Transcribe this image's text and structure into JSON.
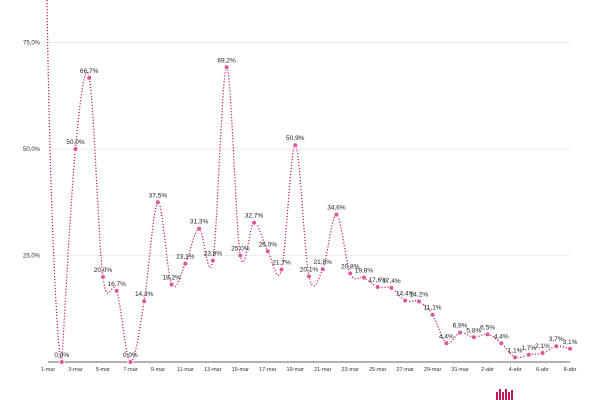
{
  "chart_data": {
    "type": "line",
    "ylim": [
      0,
      85
    ],
    "yticks": [
      25,
      50,
      75
    ],
    "ytick_labels": [
      "25,0%",
      "50,0%",
      "75,0%"
    ],
    "x": [
      "1-mar",
      "2-mar",
      "3-mar",
      "4-mar",
      "5-mar",
      "6-mar",
      "7-mar",
      "8-mar",
      "9-mar",
      "10-mar",
      "11-mar",
      "12-mar",
      "13-mar",
      "14-mar",
      "15-mar",
      "16-mar",
      "17-mar",
      "18-mar",
      "19-mar",
      "20-mar",
      "21-mar",
      "22-mar",
      "23-mar",
      "24-mar",
      "25-mar",
      "26-mar",
      "27-mar",
      "28-mar",
      "29-mar",
      "30-mar",
      "31-mar",
      "1-abr",
      "2-abr",
      "3-abr",
      "4-abr",
      "5-abr",
      "6-abr",
      "7-abr",
      "8-abr"
    ],
    "xtick_labels": [
      "1-mar",
      "3-mar",
      "5-mar",
      "7-mar",
      "9-mar",
      "11-mar",
      "13-mar",
      "15-mar",
      "17-mar",
      "19-mar",
      "21-mar",
      "23-mar",
      "25-mar",
      "27-mar",
      "29-mar",
      "31-mar",
      "2-abr",
      "4-abr",
      "6-abr",
      "8-abr"
    ],
    "series": [
      {
        "values": [
          null,
          0.0,
          50.0,
          66.7,
          20.0,
          16.7,
          0.0,
          14.3,
          37.5,
          18.2,
          23.1,
          31.3,
          23.8,
          69.2,
          25.0,
          32.7,
          26.0,
          21.7,
          50.9,
          20.1,
          21.8,
          34.6,
          20.8,
          19.8,
          17.6,
          17.4,
          14.4,
          14.2,
          11.1,
          4.4,
          6.9,
          5.8,
          6.5,
          4.4,
          1.1,
          1.7,
          2.1,
          3.7,
          3.1
        ],
        "labels": [
          "",
          "0,0%",
          "50,0%",
          "66,7%",
          "20,0%",
          "16,7%",
          "0,0%",
          "14,3%",
          "37,5%",
          "18,2%",
          "23,1%",
          "31,3%",
          "23,8%",
          "69,2%",
          "25,0%",
          "32,7%",
          "26,0%",
          "21,7%",
          "50,9%",
          "20,1%",
          "21,8%",
          "34,6%",
          "20,8%",
          "19,8%",
          "17,6%",
          "17,4%",
          "14,4%",
          "14,2%",
          "11,1%",
          "4,4%",
          "6,9%",
          "5,8%",
          "6,5%",
          "4,4%",
          "1,1%",
          "1,7%",
          "2,1%",
          "3,7%",
          "3,1%"
        ]
      }
    ],
    "grid": true,
    "line_style": "dotted smooth",
    "colors": {
      "line": "#c2185b",
      "marker": "#e0559a",
      "grid": "#e6e6e6",
      "axis": "#333333"
    }
  }
}
